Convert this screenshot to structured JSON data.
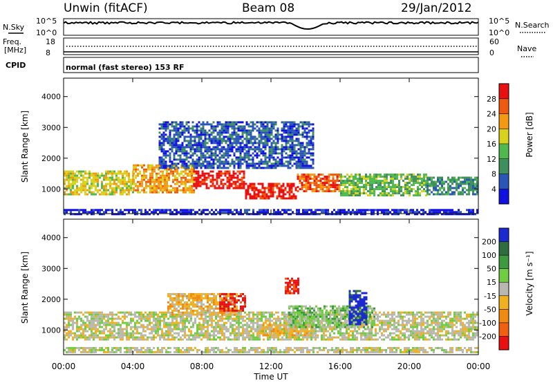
{
  "header": {
    "station": "Unwin (fitACF)",
    "beam": "Beam 08",
    "date": "29/Jan/2012"
  },
  "noise_panel": {
    "left_label": "N.Sky",
    "left_ticks": [
      "10^5",
      "10^0"
    ],
    "right_label": "N.Search",
    "right_ticks": [
      "10^5",
      "10^0"
    ]
  },
  "freq_panel": {
    "left_label_1": "Freq.",
    "left_label_2": "[MHz]",
    "left_ticks": [
      "18",
      "8"
    ],
    "right_label": "Nave",
    "right_ticks": [
      "60",
      "0"
    ]
  },
  "cpid_panel": {
    "label": "CPID",
    "mode_text": "normal (fast stereo) 153 RF"
  },
  "chart_data": [
    {
      "type": "heatmap",
      "panel": "power",
      "ylabel": "Slant Range [km]",
      "y_ticks": [
        "1000",
        "2000",
        "3000",
        "4000"
      ],
      "ylim": [
        200,
        4600
      ],
      "xlim_hours": [
        0,
        24
      ],
      "colorbar": {
        "label": "Power [dB]",
        "ticks": [
          "4",
          "8",
          "12",
          "16",
          "20",
          "24",
          "28"
        ],
        "colors": [
          "#1010e0",
          "#2a56b8",
          "#3f8f5f",
          "#4fb84f",
          "#d8d21c",
          "#f59a10",
          "#ee5a10",
          "#e81010"
        ]
      },
      "bands": [
        {
          "start": 0.0,
          "end": 4.0,
          "range_low": 800,
          "range_high": 1600,
          "level": 4
        },
        {
          "start": 4.0,
          "end": 7.5,
          "range_low": 900,
          "range_high": 1800,
          "level": 5
        },
        {
          "start": 7.5,
          "end": 10.5,
          "range_low": 1000,
          "range_high": 1600,
          "level": 7
        },
        {
          "start": 10.5,
          "end": 13.5,
          "range_low": 700,
          "range_high": 1200,
          "level": 7
        },
        {
          "start": 13.5,
          "end": 16.0,
          "range_low": 900,
          "range_high": 1500,
          "level": 6
        },
        {
          "start": 16.0,
          "end": 21.0,
          "range_low": 800,
          "range_high": 1500,
          "level": 3
        },
        {
          "start": 21.0,
          "end": 24.0,
          "range_low": 800,
          "range_high": 1400,
          "level": 2
        },
        {
          "start": 5.5,
          "end": 14.5,
          "range_low": 1700,
          "range_high": 3200,
          "level": 1
        },
        {
          "start": 0.0,
          "end": 24.0,
          "range_low": 200,
          "range_high": 350,
          "level": 0
        }
      ]
    },
    {
      "type": "heatmap",
      "panel": "velocity",
      "ylabel": "Slant Range [km]",
      "y_ticks": [
        "1000",
        "2000",
        "3000",
        "4000"
      ],
      "ylim": [
        200,
        4600
      ],
      "xlim_hours": [
        0,
        24
      ],
      "x_ticks": [
        "00:00",
        "04:00",
        "08:00",
        "12:00",
        "16:00",
        "20:00",
        "00:00"
      ],
      "xlabel": "Time UT",
      "colorbar": {
        "label": "Velocity [m s⁻¹]",
        "ticks": [
          "200",
          "100",
          "50",
          "15",
          "-15",
          "-50",
          "-100",
          "-200"
        ],
        "colors": [
          "#1a2ad0",
          "#2e6e3e",
          "#3e9a3e",
          "#70cc40",
          "#b8b8b0",
          "#f0b020",
          "#f08a10",
          "#f06010",
          "#e81010"
        ]
      },
      "bands": [
        {
          "start": 0.0,
          "end": 24.0,
          "range_low": 700,
          "range_high": 1600,
          "level": 4
        },
        {
          "start": 6.0,
          "end": 10.0,
          "range_low": 1500,
          "range_high": 2200,
          "level": 5
        },
        {
          "start": 11.5,
          "end": 14.5,
          "range_low": 800,
          "range_high": 1200,
          "level": 5
        },
        {
          "start": 13.0,
          "end": 18.0,
          "range_low": 1100,
          "range_high": 1800,
          "level": 3
        },
        {
          "start": 9.0,
          "end": 10.5,
          "range_low": 1600,
          "range_high": 2200,
          "level": 8
        },
        {
          "start": 12.8,
          "end": 13.6,
          "range_low": 2200,
          "range_high": 2700,
          "level": 8
        },
        {
          "start": 16.5,
          "end": 17.5,
          "range_low": 1200,
          "range_high": 2300,
          "level": 0
        },
        {
          "start": 0.0,
          "end": 24.0,
          "range_low": 250,
          "range_high": 450,
          "level": 4
        }
      ]
    }
  ]
}
